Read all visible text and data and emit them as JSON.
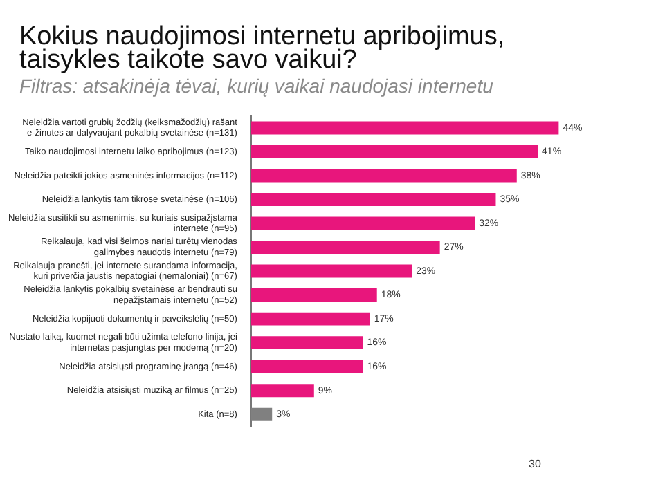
{
  "chart_data": {
    "type": "bar",
    "orientation": "horizontal",
    "title": "Kokius naudojimosi internetu apribojimus, taisykles taikote savo vaikui?",
    "subtitle": "Filtras: atsakinėja tėvai, kurių vaikai naudojasi internetu",
    "categories": [
      "Neleidžia vartoti grubių žodžių (keiksmažodžių) rašant e-žinutes ar dalyvaujant pokalbių svetainėse (n=131)",
      "Taiko naudojimosi internetu laiko apribojimus (n=123)",
      "Neleidžia pateikti jokios asmeninės informacijos (n=112)",
      "Neleidžia lankytis tam tikrose svetainėse (n=106)",
      "Neleidžia susitikti su asmenimis, su kuriais susipažįstama internete (n=95)",
      "Reikalauja, kad visi šeimos nariai turėtų vienodas galimybes naudotis internetu (n=79)",
      "Reikalauja pranešti, jei internete surandama informacija, kuri priverčia jaustis nepatogiai (nemaloniai) (n=67)",
      "Neleidžia lankytis pokalbių svetainėse ar bendrauti su nepažįstamais internetu (n=52)",
      "Neleidžia kopijuoti dokumentų ir paveikslėlių (n=50)",
      "Nustato laiką, kuomet negali būti užimta telefono linija, jei internetas pasjungtas per modemą (n=20)",
      "Neleidžia atsisiųsti programinę įrangą (n=46)",
      "Neleidžia atsisiųsti muziką ar filmus (n=25)",
      "Kita (n=8)"
    ],
    "values": [
      44,
      41,
      38,
      35,
      32,
      27,
      23,
      18,
      17,
      16,
      16,
      9,
      3
    ],
    "value_labels": [
      "44%",
      "41%",
      "38%",
      "35%",
      "32%",
      "27%",
      "23%",
      "18%",
      "17%",
      "16%",
      "16%",
      "9%",
      "3%"
    ],
    "colors": [
      "#e8167c",
      "#e8167c",
      "#e8167c",
      "#e8167c",
      "#e8167c",
      "#e8167c",
      "#e8167c",
      "#e8167c",
      "#e8167c",
      "#e8167c",
      "#e8167c",
      "#e8167c",
      "#808080"
    ],
    "annotations": [
      "30"
    ]
  }
}
